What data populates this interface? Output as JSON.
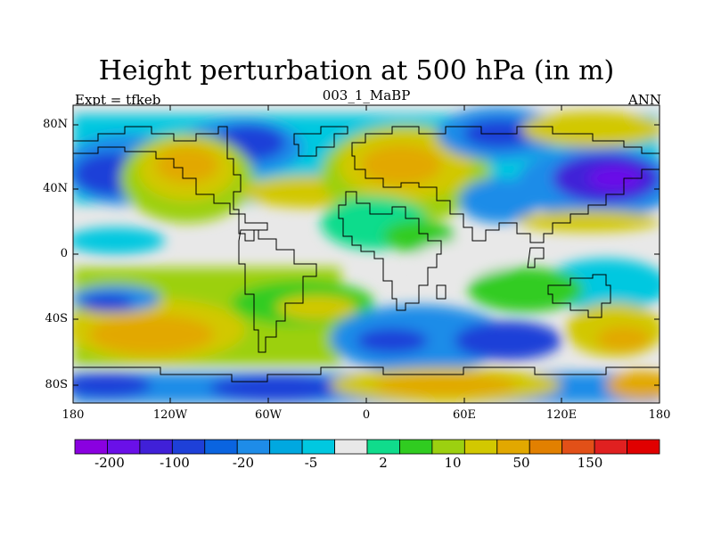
{
  "title": "Height perturbation at 500 hPa (in m)",
  "subtitle_left": "Expt = tfkeb",
  "subtitle_center": "003_1_MaBP",
  "subtitle_right": "ANN",
  "lat_ticks": [
    "80N",
    "40N",
    "0",
    "40S",
    "80S"
  ],
  "lon_ticks": [
    "180",
    "120W",
    "60W",
    "0",
    "60E",
    "120E",
    "180"
  ],
  "colorbar": {
    "colors": [
      "#8a00e0",
      "#6a10e8",
      "#4020d8",
      "#1e40d8",
      "#0a64e0",
      "#1e8ce8",
      "#00a8e0",
      "#00c8e0",
      "#e8e8e8",
      "#10dc8c",
      "#30cc20",
      "#9cd010",
      "#d2c800",
      "#e2a800",
      "#e28000",
      "#e25018",
      "#e02020",
      "#e00000"
    ],
    "labels": [
      "-200",
      "-100",
      "-20",
      "-5",
      "2",
      "10",
      "50",
      "150"
    ]
  },
  "colors": {
    "background": "#ffffff",
    "neutral": "#e8e8e8",
    "coastline": "#000000"
  }
}
